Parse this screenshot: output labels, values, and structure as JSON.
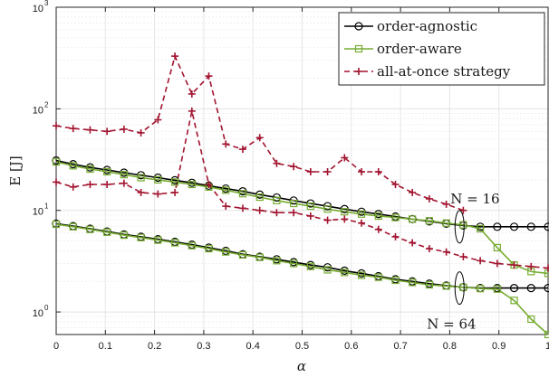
{
  "chart_data": {
    "type": "line",
    "xlabel": "α",
    "ylabel": "E [J]",
    "xlim": [
      0,
      1
    ],
    "ylim": [
      0.6,
      1000
    ],
    "yscale": "log",
    "grid": true,
    "legend_position": "top-right",
    "xticks": [
      "0",
      "0.1",
      "0.2",
      "0.3",
      "0.4",
      "0.5",
      "0.6",
      "0.7",
      "0.8",
      "0.9",
      "1"
    ],
    "yticks": [
      {
        "base": "10",
        "exp": "0"
      },
      {
        "base": "10",
        "exp": "1"
      },
      {
        "base": "10",
        "exp": "2"
      },
      {
        "base": "10",
        "exp": "3"
      }
    ],
    "x": [
      0,
      0.0345,
      0.069,
      0.1034,
      0.1379,
      0.1724,
      0.2069,
      0.2414,
      0.2759,
      0.3103,
      0.3448,
      0.3793,
      0.4138,
      0.4483,
      0.4828,
      0.5172,
      0.5517,
      0.5862,
      0.6207,
      0.6552,
      0.6897,
      0.7241,
      0.7586,
      0.7931,
      0.8276,
      0.8621,
      0.8966,
      0.931,
      0.9655,
      1
    ],
    "series": [
      {
        "name": "order-agnostic",
        "group": "N = 16",
        "color": "#000000",
        "marker": "circle",
        "dash": "solid",
        "values": [
          31,
          28.5,
          26.5,
          25,
          23.5,
          22.2,
          21,
          19.8,
          18.7,
          17.5,
          16.4,
          15.4,
          14.3,
          13.4,
          12.5,
          11.7,
          11,
          10.3,
          9.7,
          9.2,
          8.7,
          8.2,
          7.8,
          7.4,
          7.1,
          6.9,
          6.9,
          6.9,
          6.9,
          6.9
        ]
      },
      {
        "name": "order-aware",
        "group": "N = 16",
        "color": "#77ac30",
        "marker": "square",
        "dash": "solid",
        "values": [
          30,
          27.5,
          25.5,
          24,
          22.5,
          21,
          20,
          19,
          18,
          17,
          15.8,
          14.6,
          13.5,
          12.5,
          11.7,
          11,
          10.3,
          9.7,
          9.2,
          8.8,
          8.5,
          8.2,
          7.9,
          7.5,
          7.2,
          6.6,
          4.3,
          2.9,
          2.5,
          2.4
        ]
      },
      {
        "name": "all-at-once strategy",
        "group": "N = 16",
        "color": "#a2142f",
        "marker": "plus",
        "dash": "dashed",
        "values": [
          68,
          64,
          62,
          60,
          63,
          58,
          78,
          330,
          140,
          210,
          45,
          40,
          52,
          29,
          27,
          24,
          24,
          33,
          24,
          24,
          18,
          15,
          13,
          11.5,
          10,
          null,
          null,
          null,
          null,
          null
        ]
      },
      {
        "name": "order-agnostic",
        "group": "N = 64",
        "color": "#000000",
        "marker": "circle",
        "dash": "solid",
        "values": [
          7.4,
          7,
          6.6,
          6.2,
          5.8,
          5.5,
          5.2,
          4.9,
          4.6,
          4.3,
          4.0,
          3.7,
          3.5,
          3.3,
          3.1,
          2.9,
          2.75,
          2.55,
          2.4,
          2.25,
          2.1,
          2.0,
          1.9,
          1.82,
          1.75,
          1.72,
          1.72,
          1.72,
          1.72,
          1.72
        ]
      },
      {
        "name": "order-aware",
        "group": "N = 64",
        "color": "#77ac30",
        "marker": "square",
        "dash": "solid",
        "values": [
          7.3,
          6.9,
          6.5,
          6.1,
          5.7,
          5.4,
          5.1,
          4.8,
          4.5,
          4.2,
          3.9,
          3.65,
          3.45,
          3.2,
          3.0,
          2.8,
          2.6,
          2.45,
          2.3,
          2.2,
          2.05,
          1.95,
          1.85,
          1.8,
          1.75,
          1.7,
          1.68,
          1.3,
          0.85,
          0.6
        ]
      },
      {
        "name": "all-at-once strategy",
        "group": "N = 64",
        "color": "#a2142f",
        "marker": "plus",
        "dash": "dashed",
        "values": [
          19,
          17,
          18,
          18,
          18.5,
          15,
          14.5,
          15,
          95,
          18,
          11,
          10.5,
          10,
          9.5,
          9.5,
          8.8,
          8,
          8.2,
          7.5,
          6.5,
          5.5,
          4.8,
          4.2,
          3.9,
          3.5,
          3.2,
          3.0,
          2.9,
          2.8,
          2.7
        ]
      }
    ],
    "annotations": [
      {
        "text": "N = 16",
        "x": 0.82,
        "y": 6.9
      },
      {
        "text": "N = 64",
        "x": 0.82,
        "y": 1.72
      }
    ]
  }
}
